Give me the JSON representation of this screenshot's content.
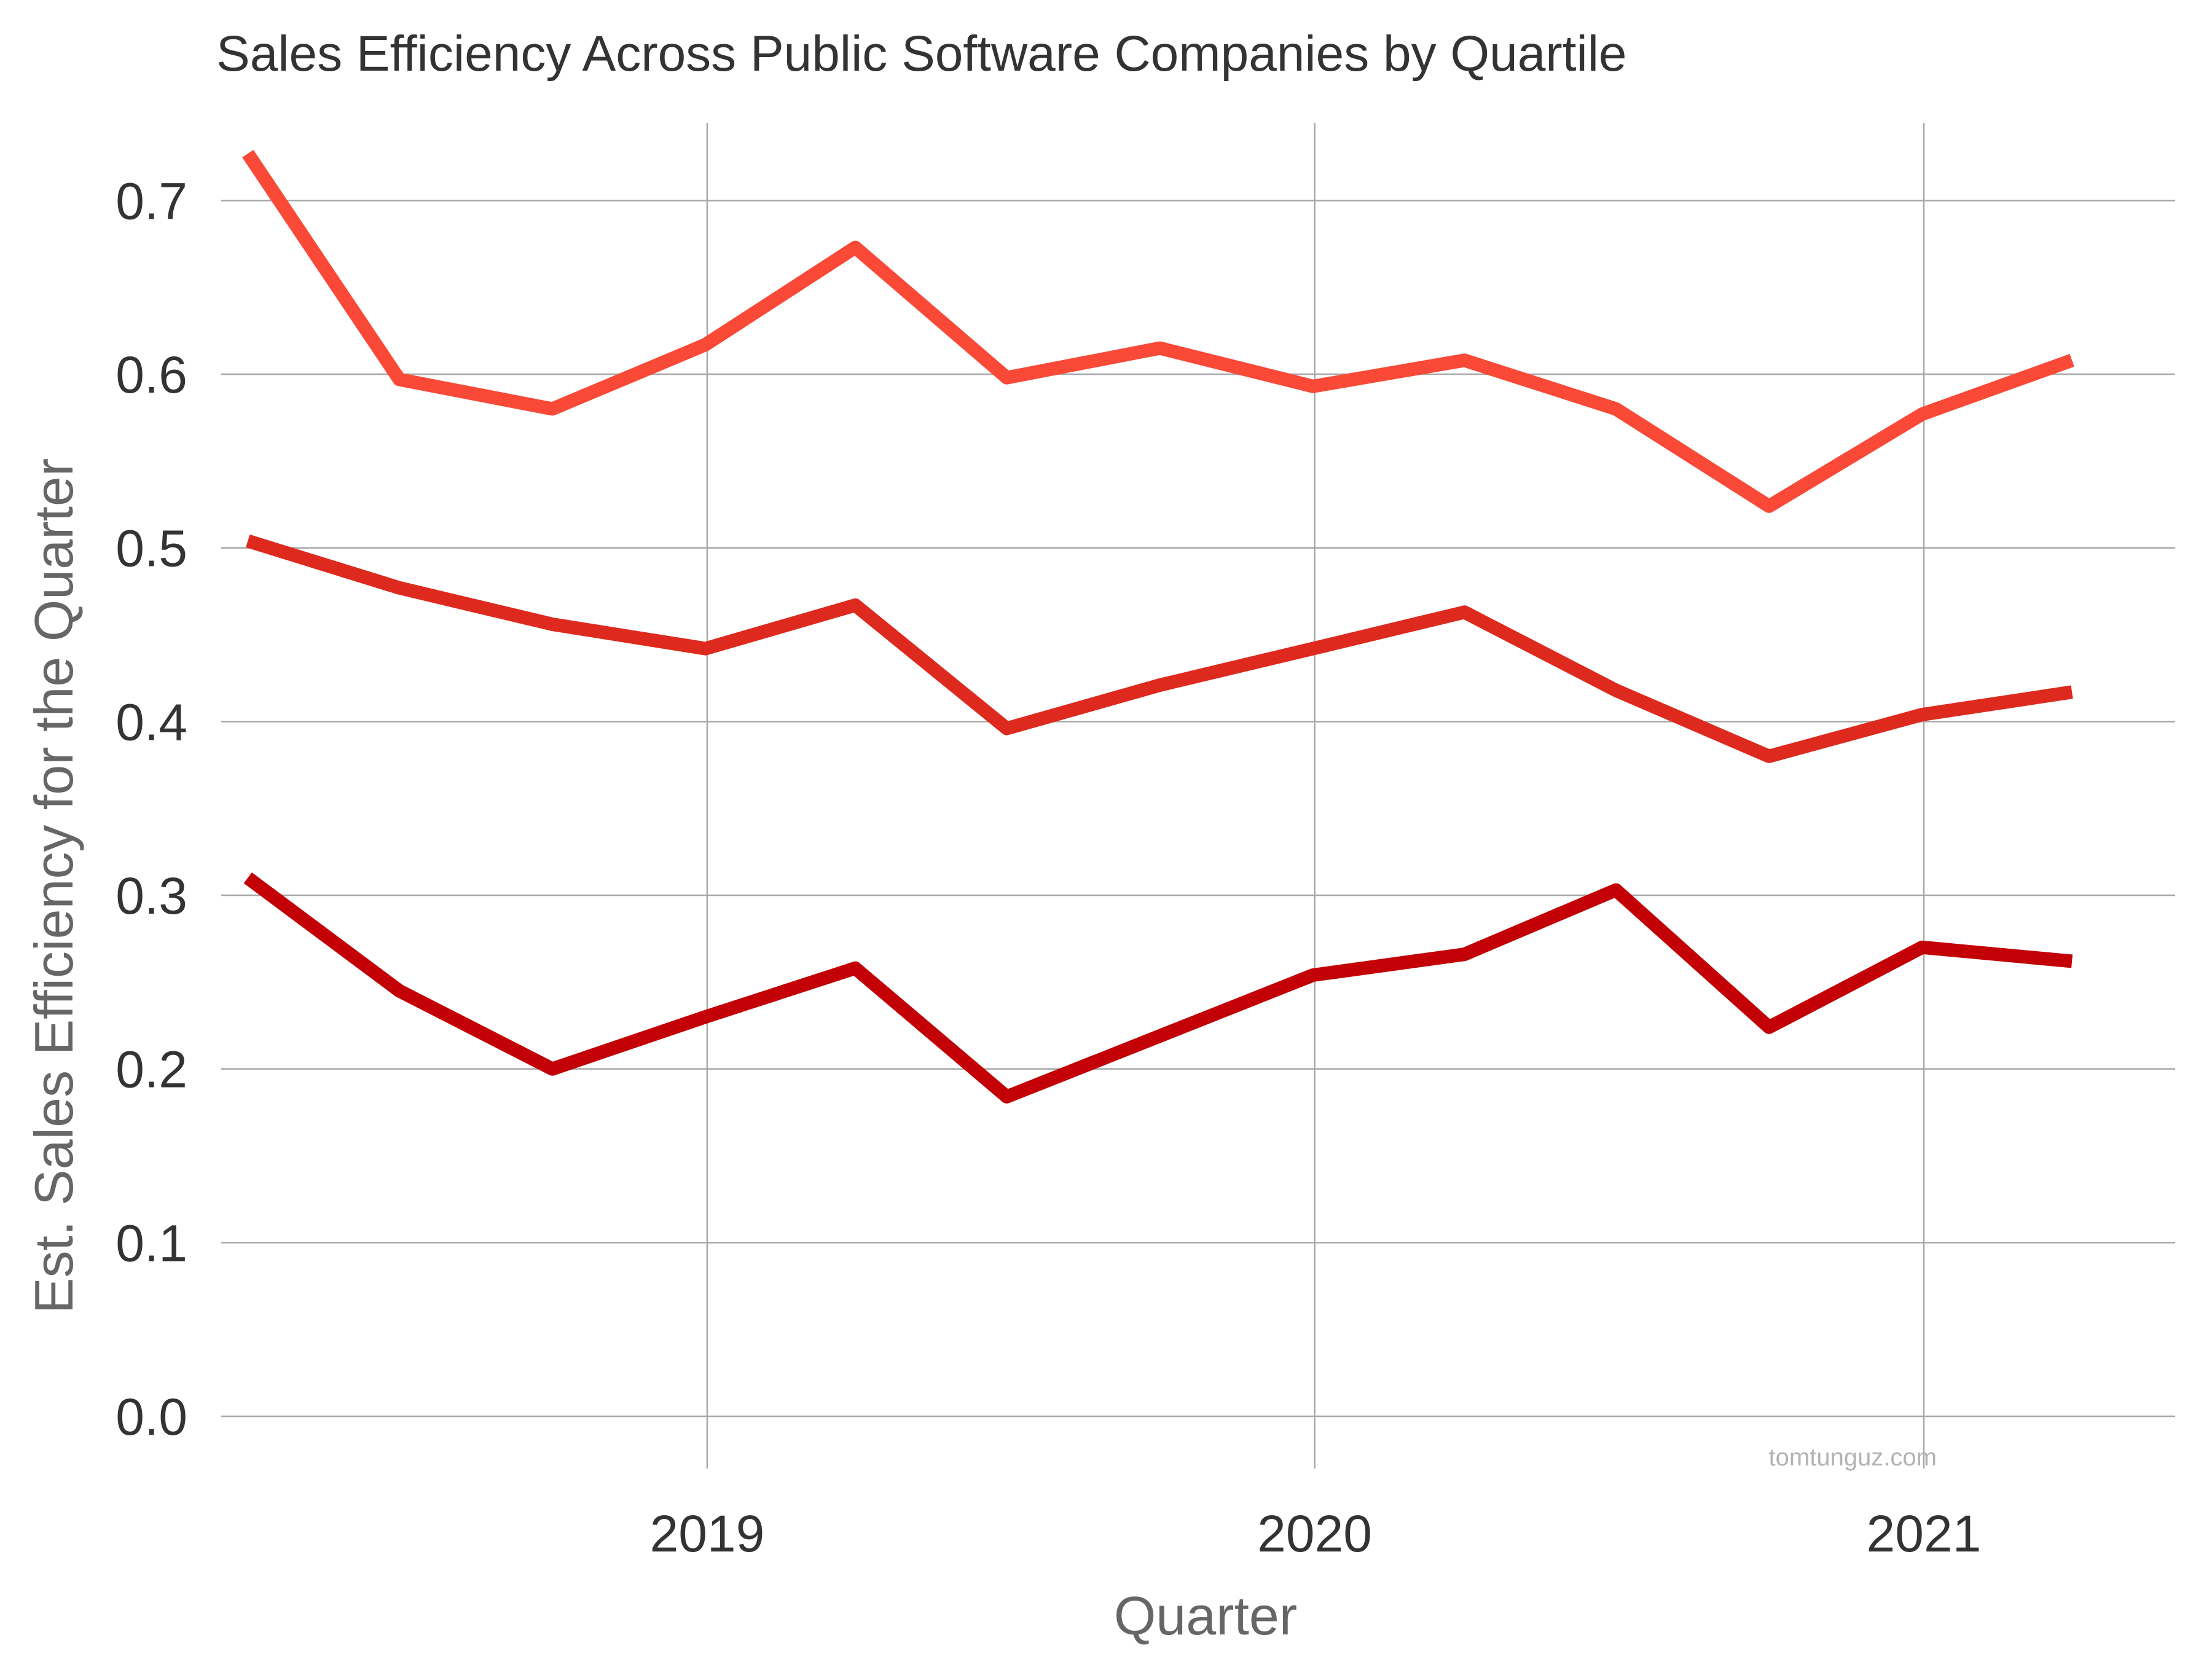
{
  "chart_data": {
    "type": "line",
    "title": "Sales Efficiency Across Public Software Companies by Quartile",
    "xlabel": "Quarter",
    "ylabel": "Est. Sales Efficiency for the Quarter",
    "ylim": [
      0,
      0.75
    ],
    "xlim": [
      "2018-03-15",
      "2021-06-01"
    ],
    "grid": true,
    "legend": "none",
    "watermark": "tomtunguz.com",
    "x": [
      "2018-03-31",
      "2018-06-30",
      "2018-09-30",
      "2018-12-31",
      "2019-03-31",
      "2019-06-30",
      "2019-09-30",
      "2019-12-31",
      "2020-03-31",
      "2020-06-30",
      "2020-09-30",
      "2020-12-31",
      "2021-03-31"
    ],
    "x_ticks": [
      {
        "value": "2019-01-01",
        "label": "2019"
      },
      {
        "value": "2020-01-01",
        "label": "2020"
      },
      {
        "value": "2021-01-01",
        "label": "2021"
      }
    ],
    "y_ticks": [
      {
        "value": 0.0,
        "label": "0.0"
      },
      {
        "value": 0.1,
        "label": "0.1"
      },
      {
        "value": 0.2,
        "label": "0.2"
      },
      {
        "value": 0.3,
        "label": "0.3"
      },
      {
        "value": 0.4,
        "label": "0.4"
      },
      {
        "value": 0.5,
        "label": "0.5"
      },
      {
        "value": 0.6,
        "label": "0.6"
      },
      {
        "value": 0.7,
        "label": "0.7"
      }
    ],
    "series": [
      {
        "color": "#fa4937",
        "values": [
          0.727,
          0.597,
          0.58,
          0.617,
          0.673,
          0.598,
          0.615,
          0.593,
          0.608,
          0.58,
          0.524,
          0.577,
          0.608
        ]
      },
      {
        "color": "#de2a1e",
        "values": [
          0.504,
          0.477,
          0.456,
          0.442,
          0.467,
          0.396,
          0.421,
          0.442,
          0.463,
          0.418,
          0.38,
          0.404,
          0.417
        ]
      },
      {
        "color": "#c20005",
        "values": [
          0.31,
          0.245,
          0.2,
          0.23,
          0.258,
          0.184,
          0.219,
          0.254,
          0.266,
          0.303,
          0.224,
          0.27,
          0.262
        ]
      }
    ]
  }
}
